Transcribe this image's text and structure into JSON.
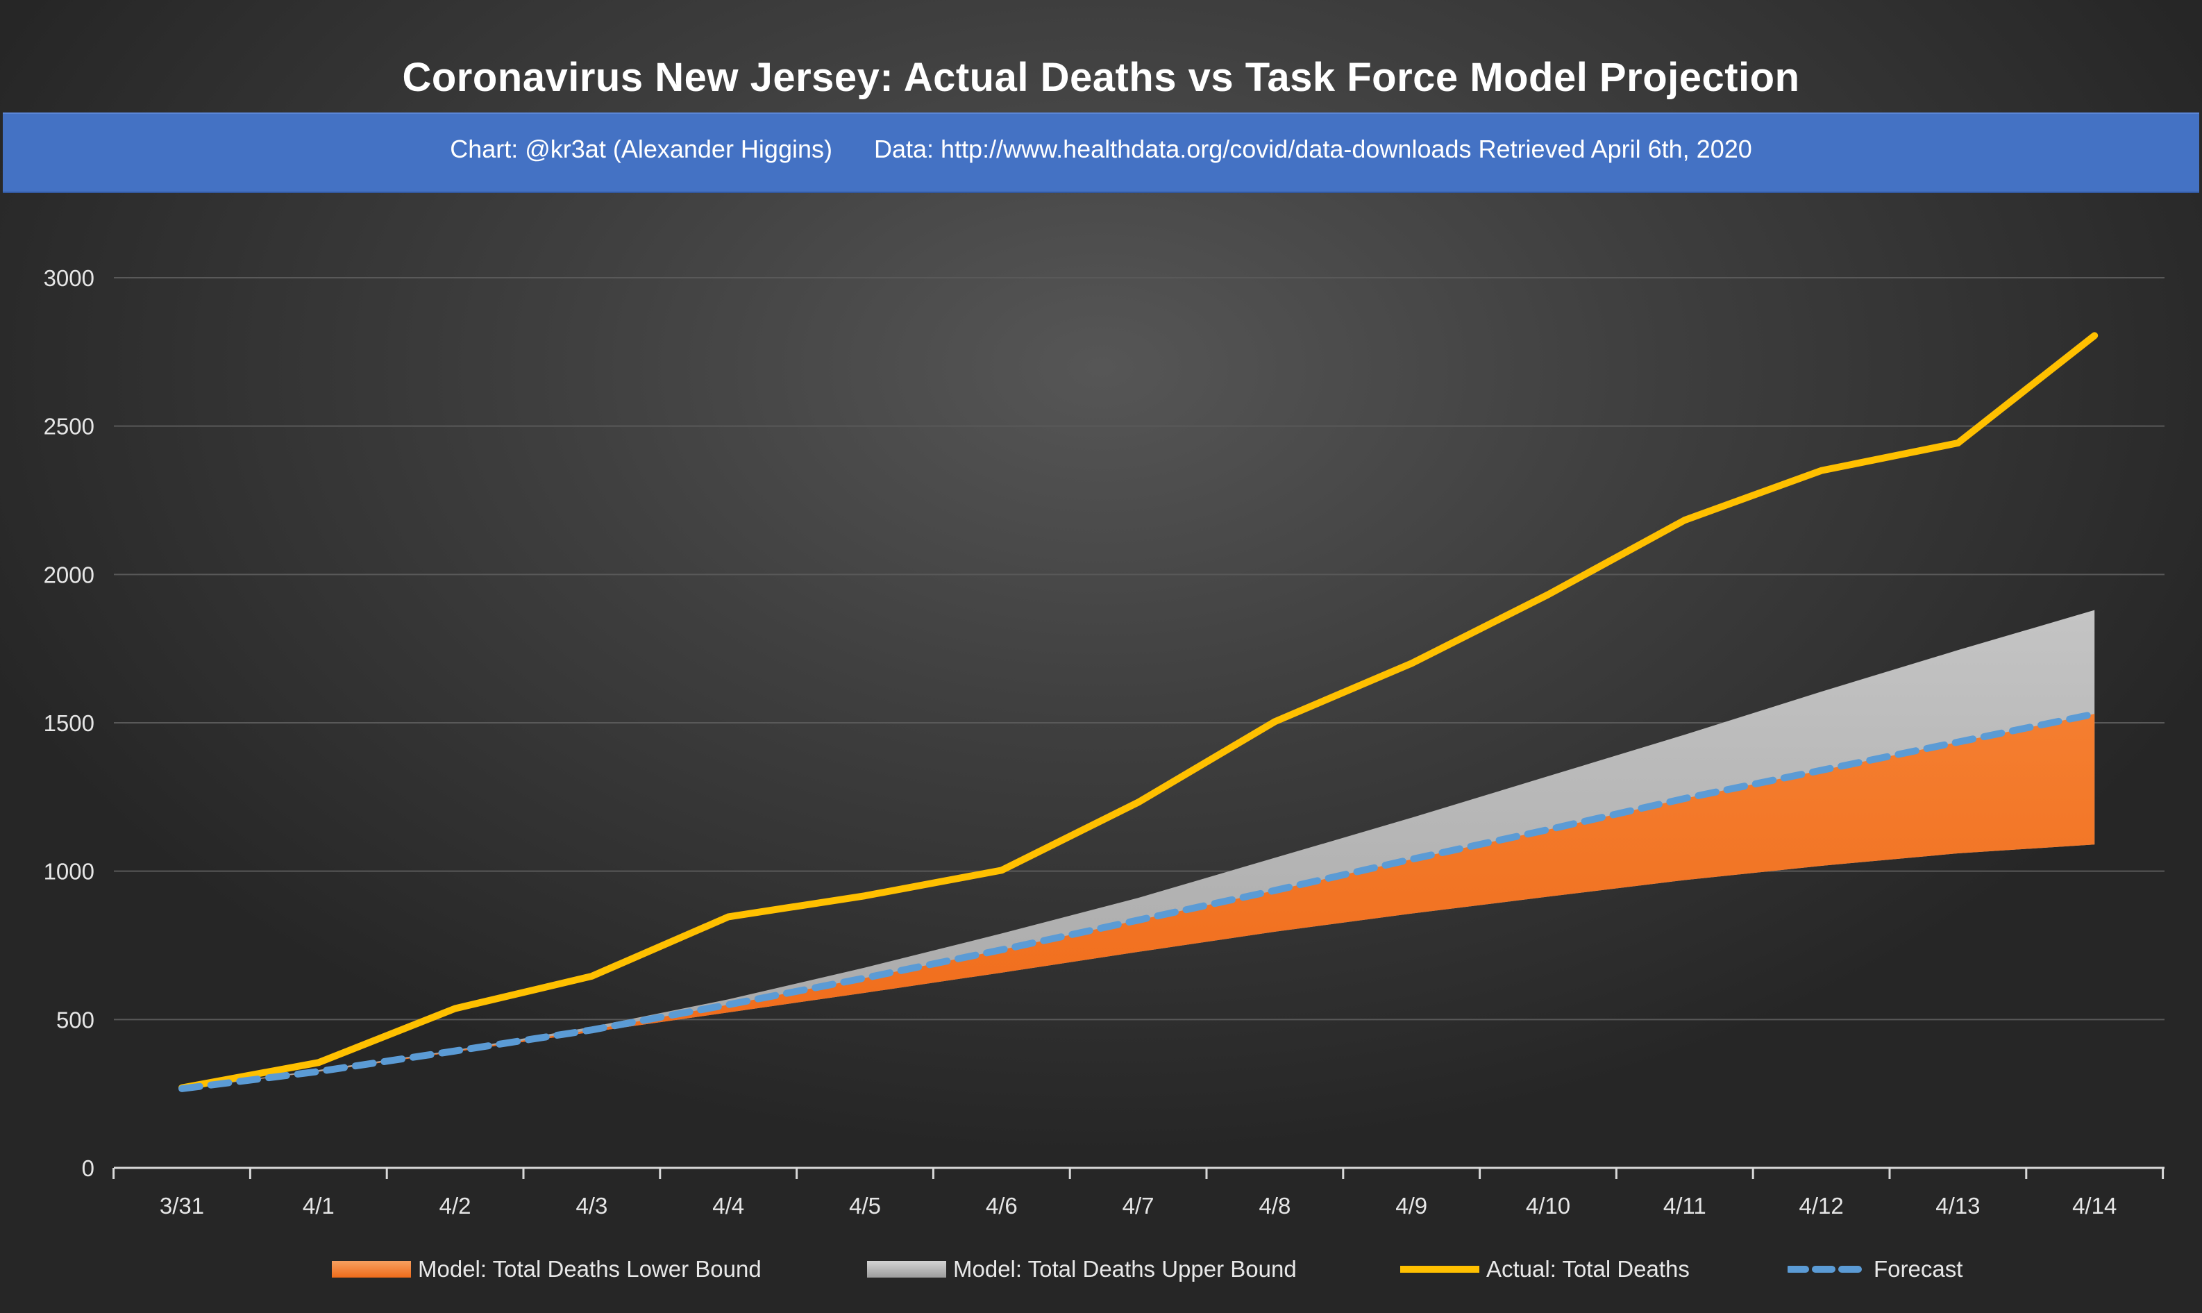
{
  "title": "Coronavirus New Jersey: Actual Deaths vs Task Force Model Projection",
  "subtitle": "Chart: @kr3at (Alexander Higgins)      Data: http://www.healthdata.org/covid/data-downloads Retrieved April 6th, 2020",
  "colors": {
    "lower_bound": "#f07a2a",
    "upper_bound": "#b4b4b4",
    "actual": "#ffc000",
    "forecast": "#5b9bd5",
    "banner": "#4472c4"
  },
  "legend_position": "bottom",
  "chart_data": {
    "type": "area",
    "categories": [
      "3/31",
      "4/1",
      "4/2",
      "4/3",
      "4/4",
      "4/5",
      "4/6",
      "4/7",
      "4/8",
      "4/9",
      "4/10",
      "4/11",
      "4/12",
      "4/13",
      "4/14"
    ],
    "ylim": [
      0,
      3000
    ],
    "yticks": [
      0,
      500,
      1000,
      1500,
      2000,
      2500,
      3000
    ],
    "grid": true,
    "series": [
      {
        "name": "Model: Total Deaths Lower Bound",
        "kind": "area",
        "values": [
          267,
          324,
          391,
          458,
          524,
          590,
          658,
          728,
          796,
          857,
          914,
          970,
          1018,
          1060,
          1090
        ]
      },
      {
        "name": "Model: Total Deaths Upper Bound",
        "kind": "area",
        "values": [
          267,
          330,
          397,
          475,
          568,
          675,
          790,
          910,
          1045,
          1180,
          1320,
          1460,
          1605,
          1745,
          1880
        ]
      },
      {
        "name": "Actual: Total Deaths",
        "kind": "line",
        "values": [
          270,
          355,
          537,
          646,
          846,
          917,
          1003,
          1232,
          1504,
          1700,
          1932,
          2183,
          2350,
          2443,
          2805
        ]
      },
      {
        "name": "Forecast",
        "kind": "dashed-line",
        "values": [
          267,
          325,
          394,
          465,
          550,
          640,
          735,
          835,
          935,
          1040,
          1140,
          1245,
          1340,
          1435,
          1530
        ]
      }
    ]
  }
}
